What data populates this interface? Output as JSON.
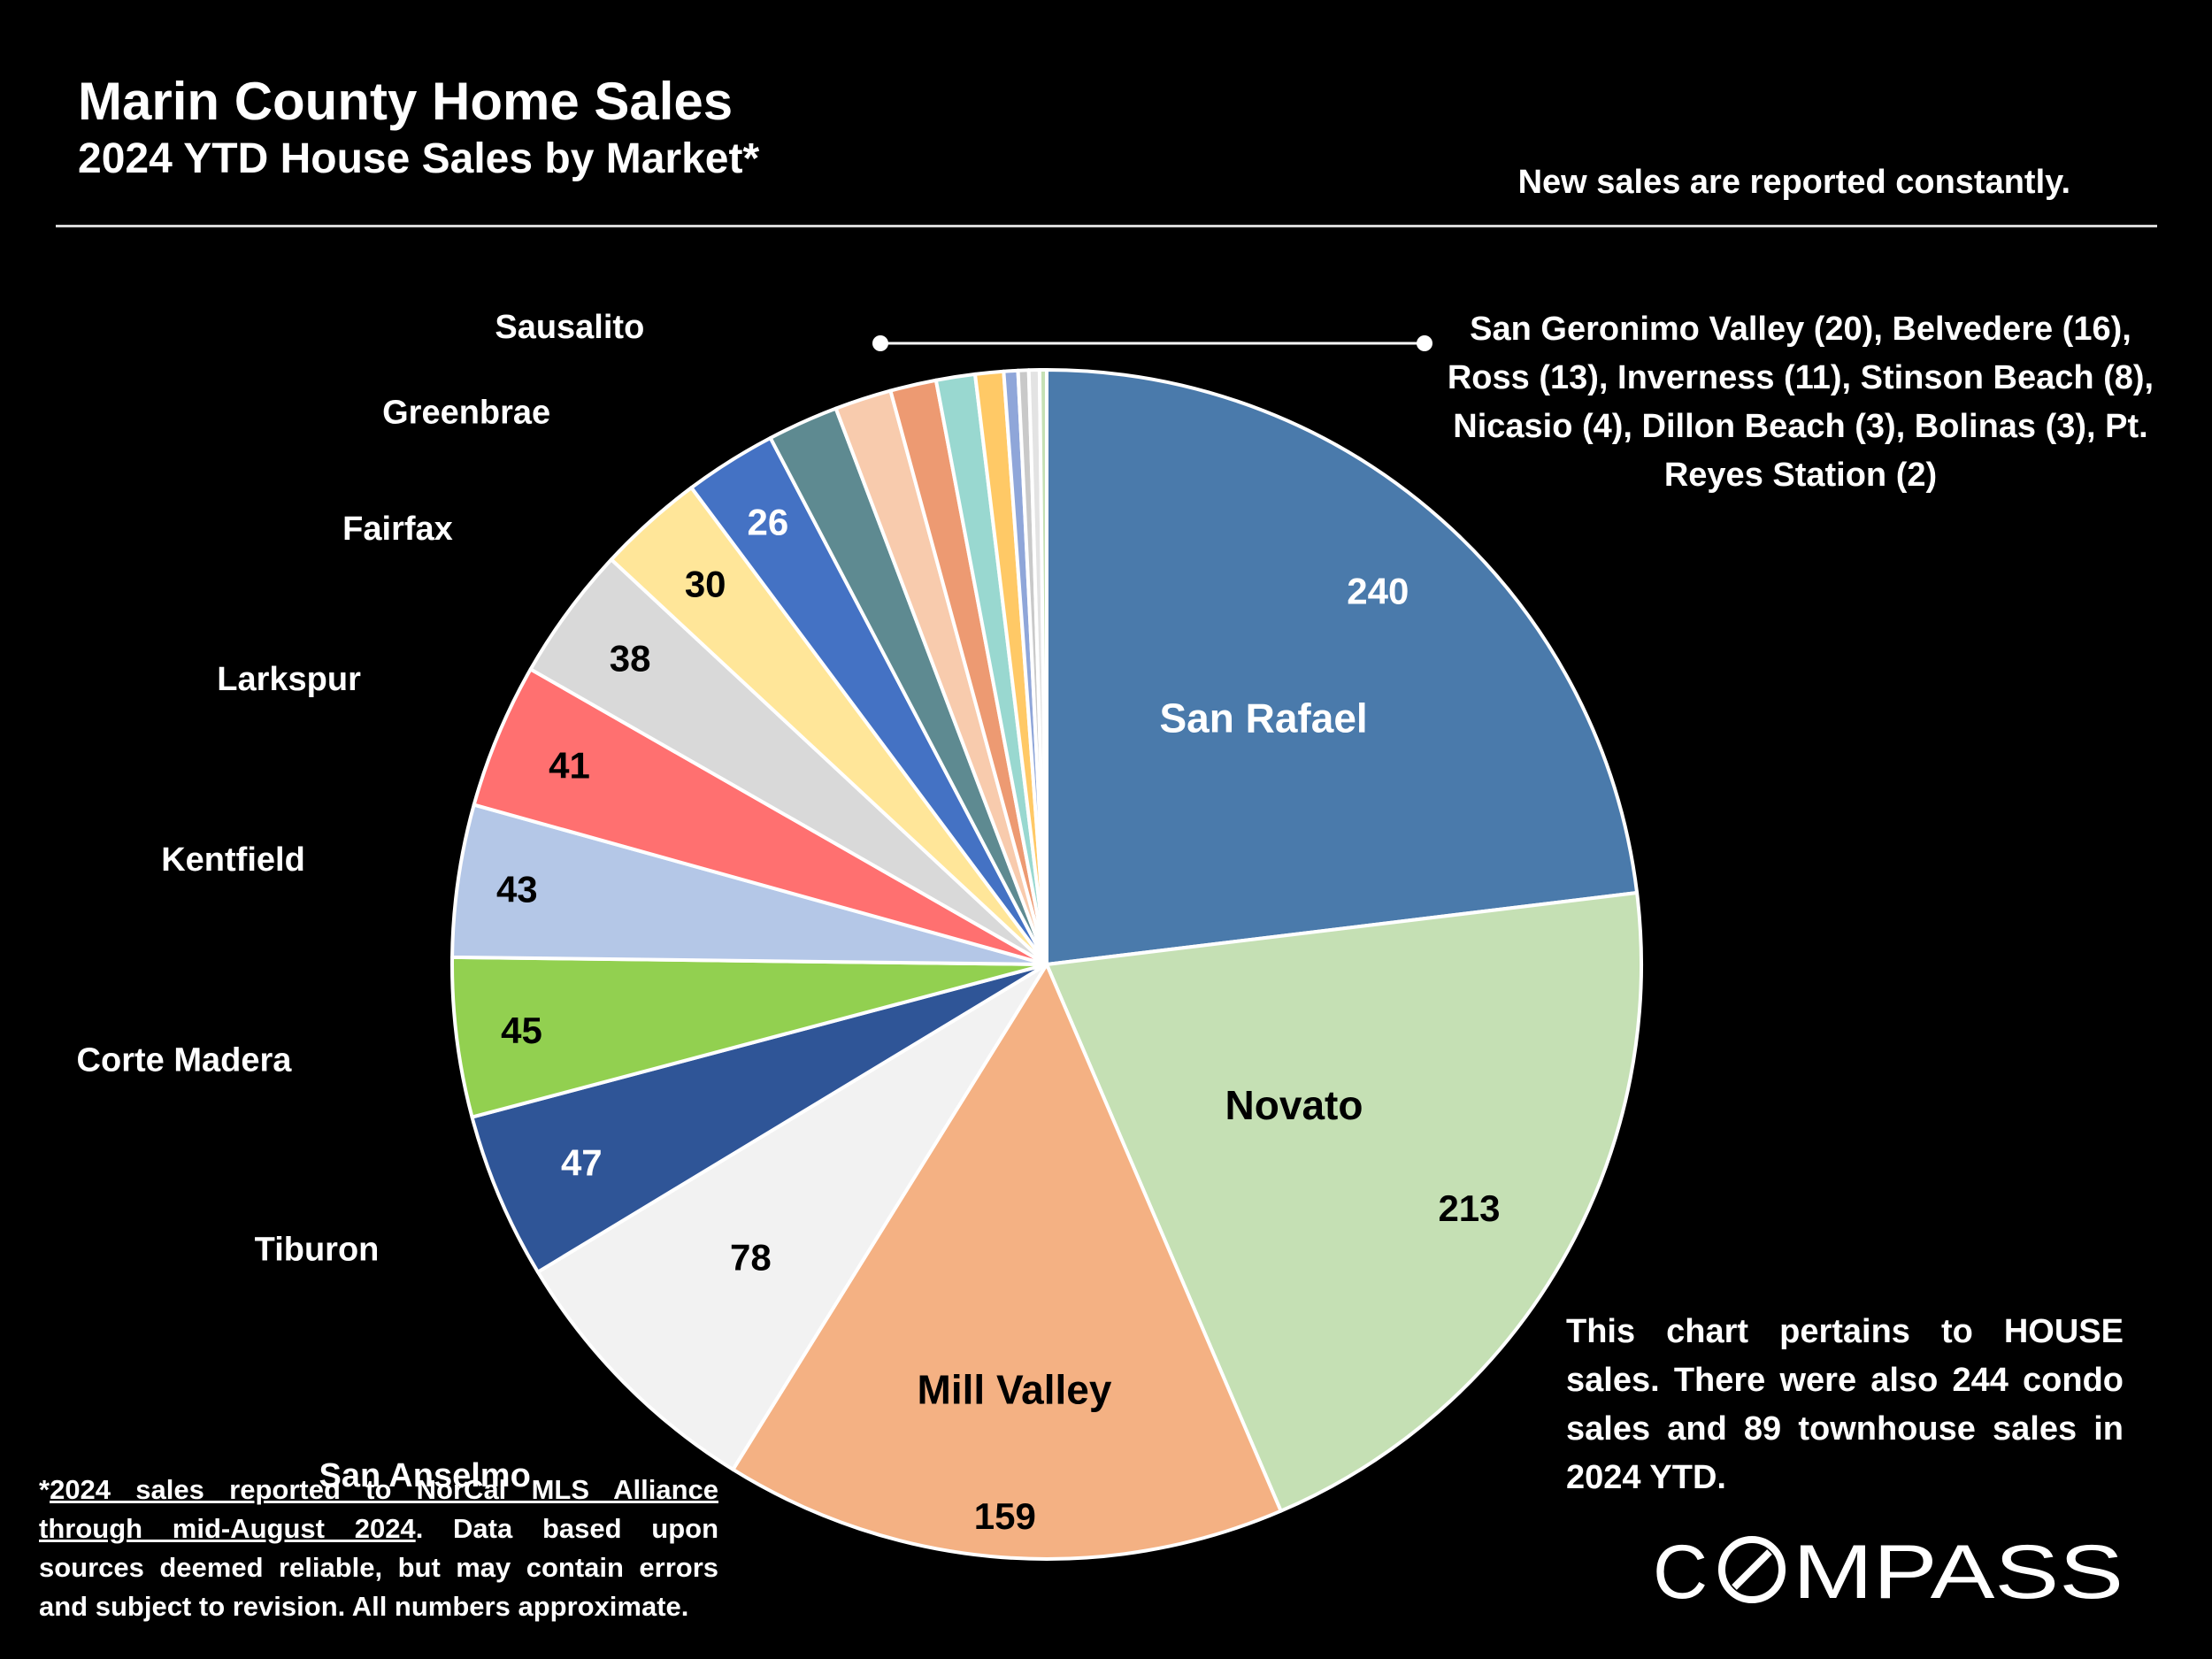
{
  "header": {
    "title": "Marin County Home Sales",
    "subtitle": "2024 YTD House Sales by Market*",
    "note": "New sales are reported constantly."
  },
  "small_markets_text": "San Geronimo Valley (20), Belvedere (16), Ross (13), Inverness (11), Stinson Beach (8), Nicasio (4), Dillon Beach (3), Bolinas (3), Pt. Reyes Station (2)",
  "house_note": "This chart pertains to HOUSE sales. There were also 244 condo sales and 89 townhouse sales in 2024 YTD.",
  "footnote": {
    "underlined": "2024 sales reported to NorCal MLS Alliance through mid-August 2024",
    "rest": ". Data based upon sources deemed reliable, but may contain errors and subject to revision. All numbers approximate."
  },
  "brand": {
    "logo_text": "COMPASS",
    "logo_icon": "compass-o-slash-icon"
  },
  "chart_data": {
    "type": "pie",
    "title": "2024 YTD House Sales by Market*",
    "start": "12 o'clock",
    "direction": "clockwise",
    "slices": [
      {
        "label": "San Rafael",
        "value": 240,
        "color": "#4a7aab",
        "show_label": true,
        "show_value": true
      },
      {
        "label": "Novato",
        "value": 213,
        "color": "#c5e0b4",
        "show_label": true,
        "show_value": true
      },
      {
        "label": "Mill Valley",
        "value": 159,
        "color": "#f4b183",
        "show_label": true,
        "show_value": true
      },
      {
        "label": "San Anselmo",
        "value": 78,
        "color": "#f2f2f2",
        "show_label": true,
        "show_value": true
      },
      {
        "label": "Tiburon",
        "value": 47,
        "color": "#2f5597",
        "show_label": true,
        "show_value": true
      },
      {
        "label": "Corte Madera",
        "value": 45,
        "color": "#92d050",
        "show_label": true,
        "show_value": true
      },
      {
        "label": "Kentfield",
        "value": 43,
        "color": "#b4c7e7",
        "show_label": true,
        "show_value": true
      },
      {
        "label": "Larkspur",
        "value": 41,
        "color": "#ff7070",
        "show_label": true,
        "show_value": true
      },
      {
        "label": "Fairfax",
        "value": 38,
        "color": "#d9d9d9",
        "show_label": true,
        "show_value": true
      },
      {
        "label": "Greenbrae",
        "value": 30,
        "color": "#ffe699",
        "show_label": true,
        "show_value": true
      },
      {
        "label": "Sausalito",
        "value": 26,
        "color": "#4472c4",
        "show_label": true,
        "show_value": true
      },
      {
        "label": "San Geronimo Valley",
        "value": 20,
        "color": "#5e8a91",
        "show_label": false,
        "show_value": false
      },
      {
        "label": "Belvedere",
        "value": 16,
        "color": "#f8cbad",
        "show_label": false,
        "show_value": false
      },
      {
        "label": "Ross",
        "value": 13,
        "color": "#ed9a72",
        "show_label": false,
        "show_value": false
      },
      {
        "label": "Inverness",
        "value": 11,
        "color": "#99d8d0",
        "show_label": false,
        "show_value": false
      },
      {
        "label": "Stinson Beach",
        "value": 8,
        "color": "#ffc966",
        "show_label": false,
        "show_value": false
      },
      {
        "label": "Nicasio",
        "value": 4,
        "color": "#8fa6d9",
        "show_label": false,
        "show_value": false
      },
      {
        "label": "Dillon Beach",
        "value": 3,
        "color": "#c9c9c9",
        "show_label": false,
        "show_value": false
      },
      {
        "label": "Bolinas",
        "value": 3,
        "color": "#e3e3e3",
        "show_label": false,
        "show_value": false
      },
      {
        "label": "Pt. Reyes Station",
        "value": 2,
        "color": "#c5e0b4",
        "show_label": false,
        "show_value": false
      }
    ]
  }
}
